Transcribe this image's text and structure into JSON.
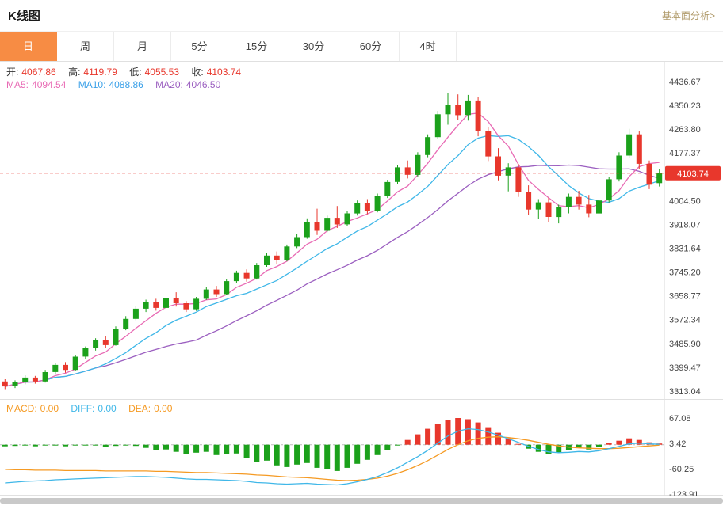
{
  "header": {
    "title": "K线图",
    "link": "基本面分析>"
  },
  "tabs": {
    "items": [
      {
        "label": "日",
        "active": true
      },
      {
        "label": "周"
      },
      {
        "label": "月"
      },
      {
        "label": "5分"
      },
      {
        "label": "15分"
      },
      {
        "label": "30分"
      },
      {
        "label": "60分"
      },
      {
        "label": "4时"
      }
    ]
  },
  "legend": {
    "ohlc": [
      {
        "label": "开:",
        "value": "4067.86"
      },
      {
        "label": "高:",
        "value": "4119.79"
      },
      {
        "label": "低:",
        "value": "4055.53"
      },
      {
        "label": "收:",
        "value": "4103.74"
      }
    ],
    "ma": [
      {
        "label": "MA5:",
        "value": "4094.54",
        "color": "#e86ab4"
      },
      {
        "label": "MA10:",
        "value": "4088.86",
        "color": "#3aa0e8"
      },
      {
        "label": "MA20:",
        "value": "4046.50",
        "color": "#9b5fc0"
      }
    ]
  },
  "macd_legend": [
    {
      "label": "MACD:",
      "value": "0.00",
      "color": "#f59a23"
    },
    {
      "label": "DIFF:",
      "value": "0.00",
      "color": "#3fb7e8"
    },
    {
      "label": "DEA:",
      "value": "0.00",
      "color": "#f59a23"
    }
  ],
  "chart_data": {
    "type": "candlestick",
    "title": "K线图",
    "timeframe": "日",
    "last_price": 4103.74,
    "ohlc_current": {
      "open": 4067.86,
      "high": 4119.79,
      "low": 4055.53,
      "close": 4103.74
    },
    "ma_values": {
      "MA5": 4094.54,
      "MA10": 4088.86,
      "MA20": 4046.5
    },
    "ma_periods": [
      5,
      10,
      20
    ],
    "y_axis_labels": [
      4436.67,
      4350.23,
      4263.8,
      4177.37,
      4004.5,
      3918.07,
      3831.64,
      3745.2,
      3658.77,
      3572.34,
      3485.9,
      3399.47,
      3313.04
    ],
    "colors": {
      "up": "#1ba11b",
      "down": "#e8372c",
      "ma5": "#e86ab4",
      "ma10": "#3fb7e8",
      "ma20": "#9b5fc0",
      "dea": "#f59a23",
      "diff": "#3fb7e8",
      "price_line": "#e8372c"
    },
    "candles": [
      [
        3348,
        3356,
        3320,
        3330
      ],
      [
        3330,
        3352,
        3324,
        3345
      ],
      [
        3345,
        3370,
        3338,
        3362
      ],
      [
        3362,
        3368,
        3340,
        3348
      ],
      [
        3348,
        3390,
        3344,
        3382
      ],
      [
        3382,
        3415,
        3376,
        3408
      ],
      [
        3408,
        3418,
        3380,
        3390
      ],
      [
        3390,
        3445,
        3388,
        3438
      ],
      [
        3438,
        3475,
        3430,
        3468
      ],
      [
        3468,
        3505,
        3460,
        3498
      ],
      [
        3498,
        3512,
        3470,
        3480
      ],
      [
        3480,
        3548,
        3478,
        3540
      ],
      [
        3540,
        3585,
        3534,
        3575
      ],
      [
        3575,
        3622,
        3570,
        3612
      ],
      [
        3612,
        3645,
        3600,
        3635
      ],
      [
        3635,
        3648,
        3605,
        3615
      ],
      [
        3615,
        3660,
        3610,
        3650
      ],
      [
        3650,
        3672,
        3620,
        3632
      ],
      [
        3632,
        3640,
        3600,
        3610
      ],
      [
        3610,
        3655,
        3604,
        3648
      ],
      [
        3648,
        3690,
        3644,
        3682
      ],
      [
        3682,
        3695,
        3655,
        3665
      ],
      [
        3665,
        3720,
        3662,
        3712
      ],
      [
        3712,
        3750,
        3705,
        3742
      ],
      [
        3742,
        3755,
        3710,
        3722
      ],
      [
        3722,
        3778,
        3718,
        3770
      ],
      [
        3770,
        3815,
        3764,
        3805
      ],
      [
        3805,
        3820,
        3775,
        3788
      ],
      [
        3788,
        3845,
        3784,
        3838
      ],
      [
        3838,
        3882,
        3832,
        3872
      ],
      [
        3872,
        3940,
        3866,
        3928
      ],
      [
        3928,
        3975,
        3880,
        3895
      ],
      [
        3895,
        3950,
        3890,
        3942
      ],
      [
        3942,
        3985,
        3905,
        3918
      ],
      [
        3918,
        3968,
        3912,
        3958
      ],
      [
        3958,
        4005,
        3950,
        3995
      ],
      [
        3995,
        4010,
        3955,
        3968
      ],
      [
        3968,
        4030,
        3962,
        4022
      ],
      [
        4022,
        4080,
        4014,
        4072
      ],
      [
        4072,
        4135,
        4065,
        4125
      ],
      [
        4125,
        4150,
        4085,
        4098
      ],
      [
        4098,
        4180,
        4092,
        4170
      ],
      [
        4170,
        4245,
        4162,
        4235
      ],
      [
        4235,
        4330,
        4228,
        4318
      ],
      [
        4318,
        4395,
        4280,
        4352
      ],
      [
        4352,
        4390,
        4298,
        4315
      ],
      [
        4315,
        4388,
        4295,
        4368
      ],
      [
        4368,
        4380,
        4238,
        4258
      ],
      [
        4258,
        4270,
        4148,
        4165
      ],
      [
        4165,
        4195,
        4078,
        4095
      ],
      [
        4095,
        4140,
        4038,
        4125
      ],
      [
        4125,
        4138,
        4018,
        4035
      ],
      [
        4035,
        4060,
        3952,
        3972
      ],
      [
        3972,
        4010,
        3938,
        3998
      ],
      [
        3998,
        4015,
        3928,
        3945
      ],
      [
        3945,
        3990,
        3922,
        3980
      ],
      [
        3980,
        4030,
        3958,
        4018
      ],
      [
        4018,
        4040,
        3972,
        3990
      ],
      [
        3990,
        4025,
        3944,
        3958
      ],
      [
        3958,
        4012,
        3948,
        4005
      ],
      [
        4005,
        4090,
        3998,
        4082
      ],
      [
        4082,
        4180,
        4074,
        4168
      ],
      [
        4168,
        4265,
        4158,
        4245
      ],
      [
        4245,
        4258,
        4118,
        4138
      ],
      [
        4138,
        4150,
        4046,
        4062
      ],
      [
        4067.86,
        4119.79,
        4055.53,
        4103.74
      ]
    ],
    "macd": {
      "y_axis_labels": [
        67.08,
        3.42,
        -60.25,
        -123.91
      ],
      "histogram": [
        -4,
        -3,
        -2,
        -4,
        -2,
        -1,
        -4,
        -2,
        -1,
        -2,
        -5,
        -3,
        -2,
        -3,
        -8,
        -14,
        -12,
        -18,
        -24,
        -20,
        -18,
        -26,
        -24,
        -22,
        -34,
        -44,
        -40,
        -52,
        -56,
        -50,
        -46,
        -58,
        -62,
        -66,
        -58,
        -48,
        -38,
        -26,
        -14,
        -2,
        12,
        26,
        40,
        52,
        62,
        67,
        64,
        56,
        44,
        30,
        16,
        2,
        -10,
        -18,
        -24,
        -20,
        -14,
        -8,
        -12,
        -6,
        4,
        10,
        16,
        12,
        6,
        3
      ],
      "diff": [
        -96,
        -94,
        -92,
        -91,
        -90,
        -88,
        -87,
        -86,
        -85,
        -84,
        -83,
        -82,
        -81,
        -80,
        -80,
        -81,
        -82,
        -84,
        -86,
        -87,
        -87,
        -88,
        -89,
        -90,
        -92,
        -95,
        -96,
        -98,
        -99,
        -98,
        -97,
        -99,
        -100,
        -101,
        -98,
        -93,
        -87,
        -80,
        -70,
        -58,
        -44,
        -30,
        -14,
        4,
        22,
        34,
        40,
        38,
        32,
        24,
        15,
        6,
        -4,
        -12,
        -18,
        -20,
        -19,
        -17,
        -18,
        -15,
        -10,
        -4,
        2,
        4,
        2,
        1
      ],
      "dea": [
        -62,
        -63,
        -63,
        -64,
        -64,
        -64,
        -65,
        -65,
        -65,
        -65,
        -66,
        -66,
        -66,
        -66,
        -66,
        -67,
        -67,
        -68,
        -69,
        -70,
        -70,
        -71,
        -72,
        -73,
        -74,
        -76,
        -77,
        -79,
        -81,
        -82,
        -83,
        -85,
        -87,
        -89,
        -90,
        -89,
        -87,
        -84,
        -79,
        -72,
        -63,
        -52,
        -40,
        -26,
        -12,
        0,
        10,
        16,
        19,
        20,
        18,
        15,
        11,
        6,
        1,
        -3,
        -6,
        -8,
        -9,
        -10,
        -10,
        -9,
        -7,
        -5,
        -3,
        -1
      ]
    }
  }
}
